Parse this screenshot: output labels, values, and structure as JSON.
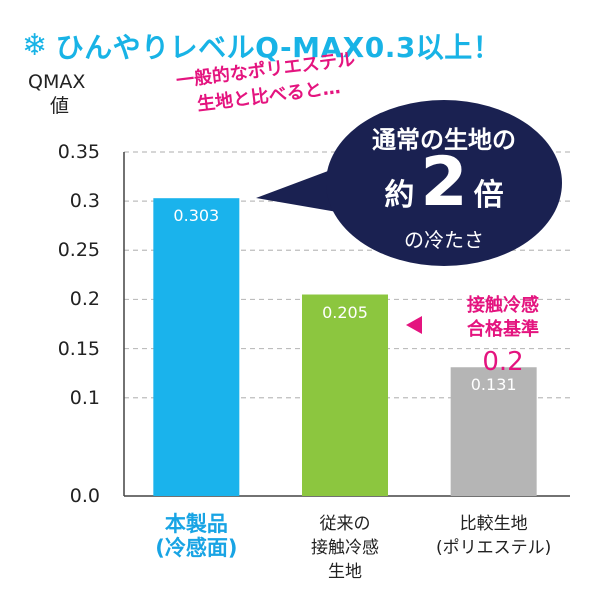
{
  "headline": {
    "icon": "snowflake-icon",
    "text": "ひんやりレベルQ-MAX0.3以上！"
  },
  "y_label": {
    "line1": "QMAX",
    "line2": "値"
  },
  "comparison_note": {
    "line1": "一般的なポリエステル",
    "line2": "生地と比べると…"
  },
  "callout": {
    "line1": "通常の生地の",
    "prefix": "約",
    "number": "2",
    "suffix": "倍",
    "line3": "の冷たさ"
  },
  "standard": {
    "line1": "接触冷感",
    "line2": "合格基準",
    "value": "0.2"
  },
  "colors": {
    "headline": "#18b3e6",
    "accent": "#e4147f",
    "callout_bg": "#1a2151",
    "grid": "#bdbdbd"
  },
  "chart_data": {
    "type": "bar",
    "ylabel": "QMAX値",
    "ylim": [
      0,
      0.35
    ],
    "yticks": [
      "0.35",
      "0.3",
      "0.25",
      "0.2",
      "0.15",
      "0.1",
      "0.0"
    ],
    "grid": true,
    "categories": [
      [
        "本製品",
        "(冷感面)"
      ],
      [
        "従来の",
        "接触冷感",
        "生地"
      ],
      [
        "比較生地",
        "(ポリエステル)"
      ]
    ],
    "values": [
      0.303,
      0.205,
      0.131
    ],
    "value_labels": [
      "0.303",
      "0.205",
      "0.131"
    ],
    "bar_colors": [
      "#1ab3ec",
      "#8cc63f",
      "#b5b5b5"
    ]
  }
}
